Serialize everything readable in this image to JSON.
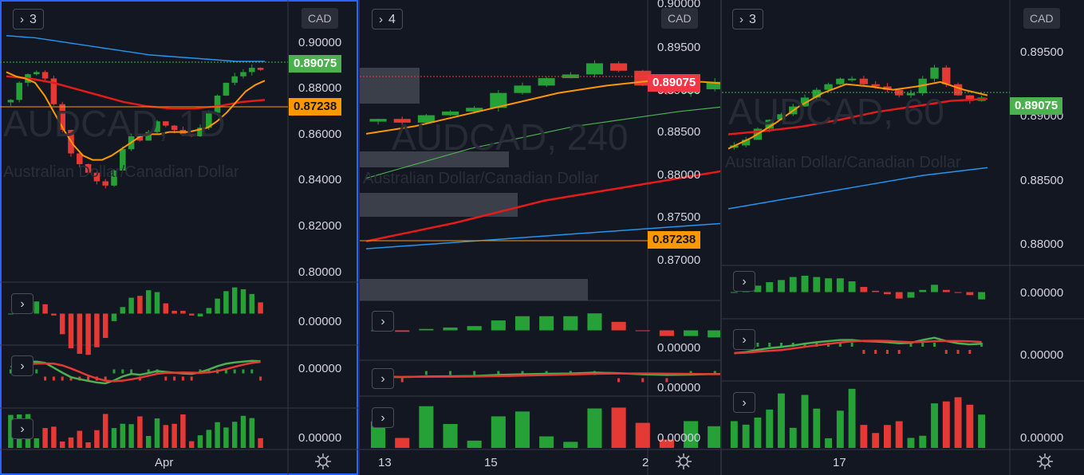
{
  "colors": {
    "bg": "#131722",
    "grid": "#2a2e39",
    "up": "#26a137",
    "down": "#e53935",
    "ema_fast": "#ff9800",
    "ema_slow": "#e31b1b",
    "ma_blue": "#2196f3",
    "ma_green": "#4caf50"
  },
  "panes": [
    {
      "id": "p1",
      "collapse_label": "3",
      "currency": "CAD",
      "watermark": "AUDCAD, 1D",
      "watermark_sub": "Australian Dollar/Canadian Dollar",
      "y_ticks": [
        "0.90000",
        "0.88000",
        "0.86000",
        "0.84000",
        "0.82000",
        "0.80000"
      ],
      "last_price": "0.89075",
      "alert_price": "0.87238",
      "x_label": "Apr",
      "sub_values": [
        "0.00000",
        "0.00000",
        "0.00000"
      ]
    },
    {
      "id": "p2",
      "collapse_label": "4",
      "currency": "CAD",
      "watermark": "AUDCAD, 240",
      "watermark_sub": "Australian Dollar/Canadian Dollar",
      "top_tick": "0.90000",
      "y_ticks": [
        "0.89500",
        "0.89000",
        "0.88500",
        "0.88000",
        "0.87500",
        "0.87000"
      ],
      "last_price": "0.89075",
      "alert_price": "0.87238",
      "x_labels": [
        "13",
        "15",
        "2"
      ],
      "sub_values": [
        "0.00000",
        "0.00000",
        "0.00000"
      ]
    },
    {
      "id": "p3",
      "collapse_label": "3",
      "currency": "CAD",
      "watermark": "AUDCAD, 60",
      "watermark_sub": "Australian Dollar/Canadian Dollar",
      "y_ticks": [
        "0.89500",
        "0.89000",
        "0.88500",
        "0.88000"
      ],
      "last_price": "0.89075",
      "x_label": "17",
      "sub_values": [
        "0.00000",
        "0.00000",
        "0.00000"
      ]
    }
  ],
  "chart_data": [
    {
      "type": "candlestick",
      "title": "AUDCAD, 1D",
      "ylim": [
        0.795,
        0.91
      ],
      "close": [
        0.876,
        0.884,
        0.888,
        0.889,
        0.886,
        0.874,
        0.862,
        0.851,
        0.846,
        0.842,
        0.838,
        0.836,
        0.843,
        0.853,
        0.859,
        0.857,
        0.861,
        0.866,
        0.864,
        0.862,
        0.86,
        0.859,
        0.863,
        0.87,
        0.878,
        0.884,
        0.887,
        0.889,
        0.891,
        0.89
      ],
      "ema_fast": [
        0.889,
        0.887,
        0.886,
        0.884,
        0.878,
        0.87,
        0.862,
        0.855,
        0.85,
        0.848,
        0.848,
        0.85,
        0.853,
        0.856,
        0.859,
        0.86,
        0.86,
        0.861,
        0.861,
        0.861,
        0.862,
        0.863,
        0.866,
        0.87,
        0.875,
        0.88,
        0.883,
        0.885
      ],
      "ema_slow": [
        0.887,
        0.886,
        0.884,
        0.881,
        0.878,
        0.875,
        0.873,
        0.872,
        0.872,
        0.873,
        0.875,
        0.876
      ],
      "ma_blue": [
        0.906,
        0.905,
        0.903,
        0.901,
        0.899,
        0.897,
        0.896,
        0.895,
        0.894,
        0.894
      ],
      "x_label": "Apr"
    },
    {
      "type": "candlestick",
      "title": "AUDCAD, 240",
      "ylim": [
        0.8655,
        0.9015
      ],
      "close": [
        0.886,
        0.8855,
        0.8865,
        0.887,
        0.8875,
        0.8895,
        0.8905,
        0.8915,
        0.892,
        0.8935,
        0.8925,
        0.8905,
        0.8895,
        0.89,
        0.891,
        0.8915,
        0.8905,
        0.8895,
        0.89,
        0.891,
        0.8915,
        0.892,
        0.8925,
        0.892,
        0.8915,
        0.8908
      ],
      "ema_fast": [
        0.884,
        0.885,
        0.8865,
        0.888,
        0.8895,
        0.8905,
        0.8912,
        0.891,
        0.8905,
        0.89,
        0.8902,
        0.891,
        0.8918,
        0.8915
      ],
      "ema_slow": [
        0.8695,
        0.872,
        0.875,
        0.877,
        0.879,
        0.881,
        0.8825,
        0.8835
      ],
      "ma_blue": [
        0.8685,
        0.87,
        0.8715,
        0.873,
        0.8745
      ],
      "ma_green": [
        0.878,
        0.882,
        0.885,
        0.887,
        0.8885,
        0.8895,
        0.89
      ],
      "x_labels": [
        "13",
        "15",
        "2"
      ]
    },
    {
      "type": "candlestick",
      "title": "AUDCAD, 60",
      "ylim": [
        0.8775,
        0.8985
      ],
      "close": [
        0.8865,
        0.887,
        0.888,
        0.8888,
        0.8893,
        0.89,
        0.8908,
        0.8915,
        0.892,
        0.8925,
        0.8925,
        0.892,
        0.8918,
        0.8915,
        0.891,
        0.8912,
        0.8925,
        0.8935,
        0.892,
        0.891,
        0.8905,
        0.8908
      ],
      "ema_fast": [
        0.8862,
        0.8872,
        0.8885,
        0.89,
        0.8912,
        0.892,
        0.8918,
        0.8915,
        0.8918,
        0.8922,
        0.8915,
        0.891
      ],
      "ema_slow": [
        0.8875,
        0.8878,
        0.8882,
        0.8888,
        0.8895,
        0.89,
        0.8905,
        0.8907
      ],
      "ma_blue": [
        0.8808,
        0.8818,
        0.8828,
        0.8838,
        0.8845
      ],
      "x_label": "17"
    }
  ]
}
